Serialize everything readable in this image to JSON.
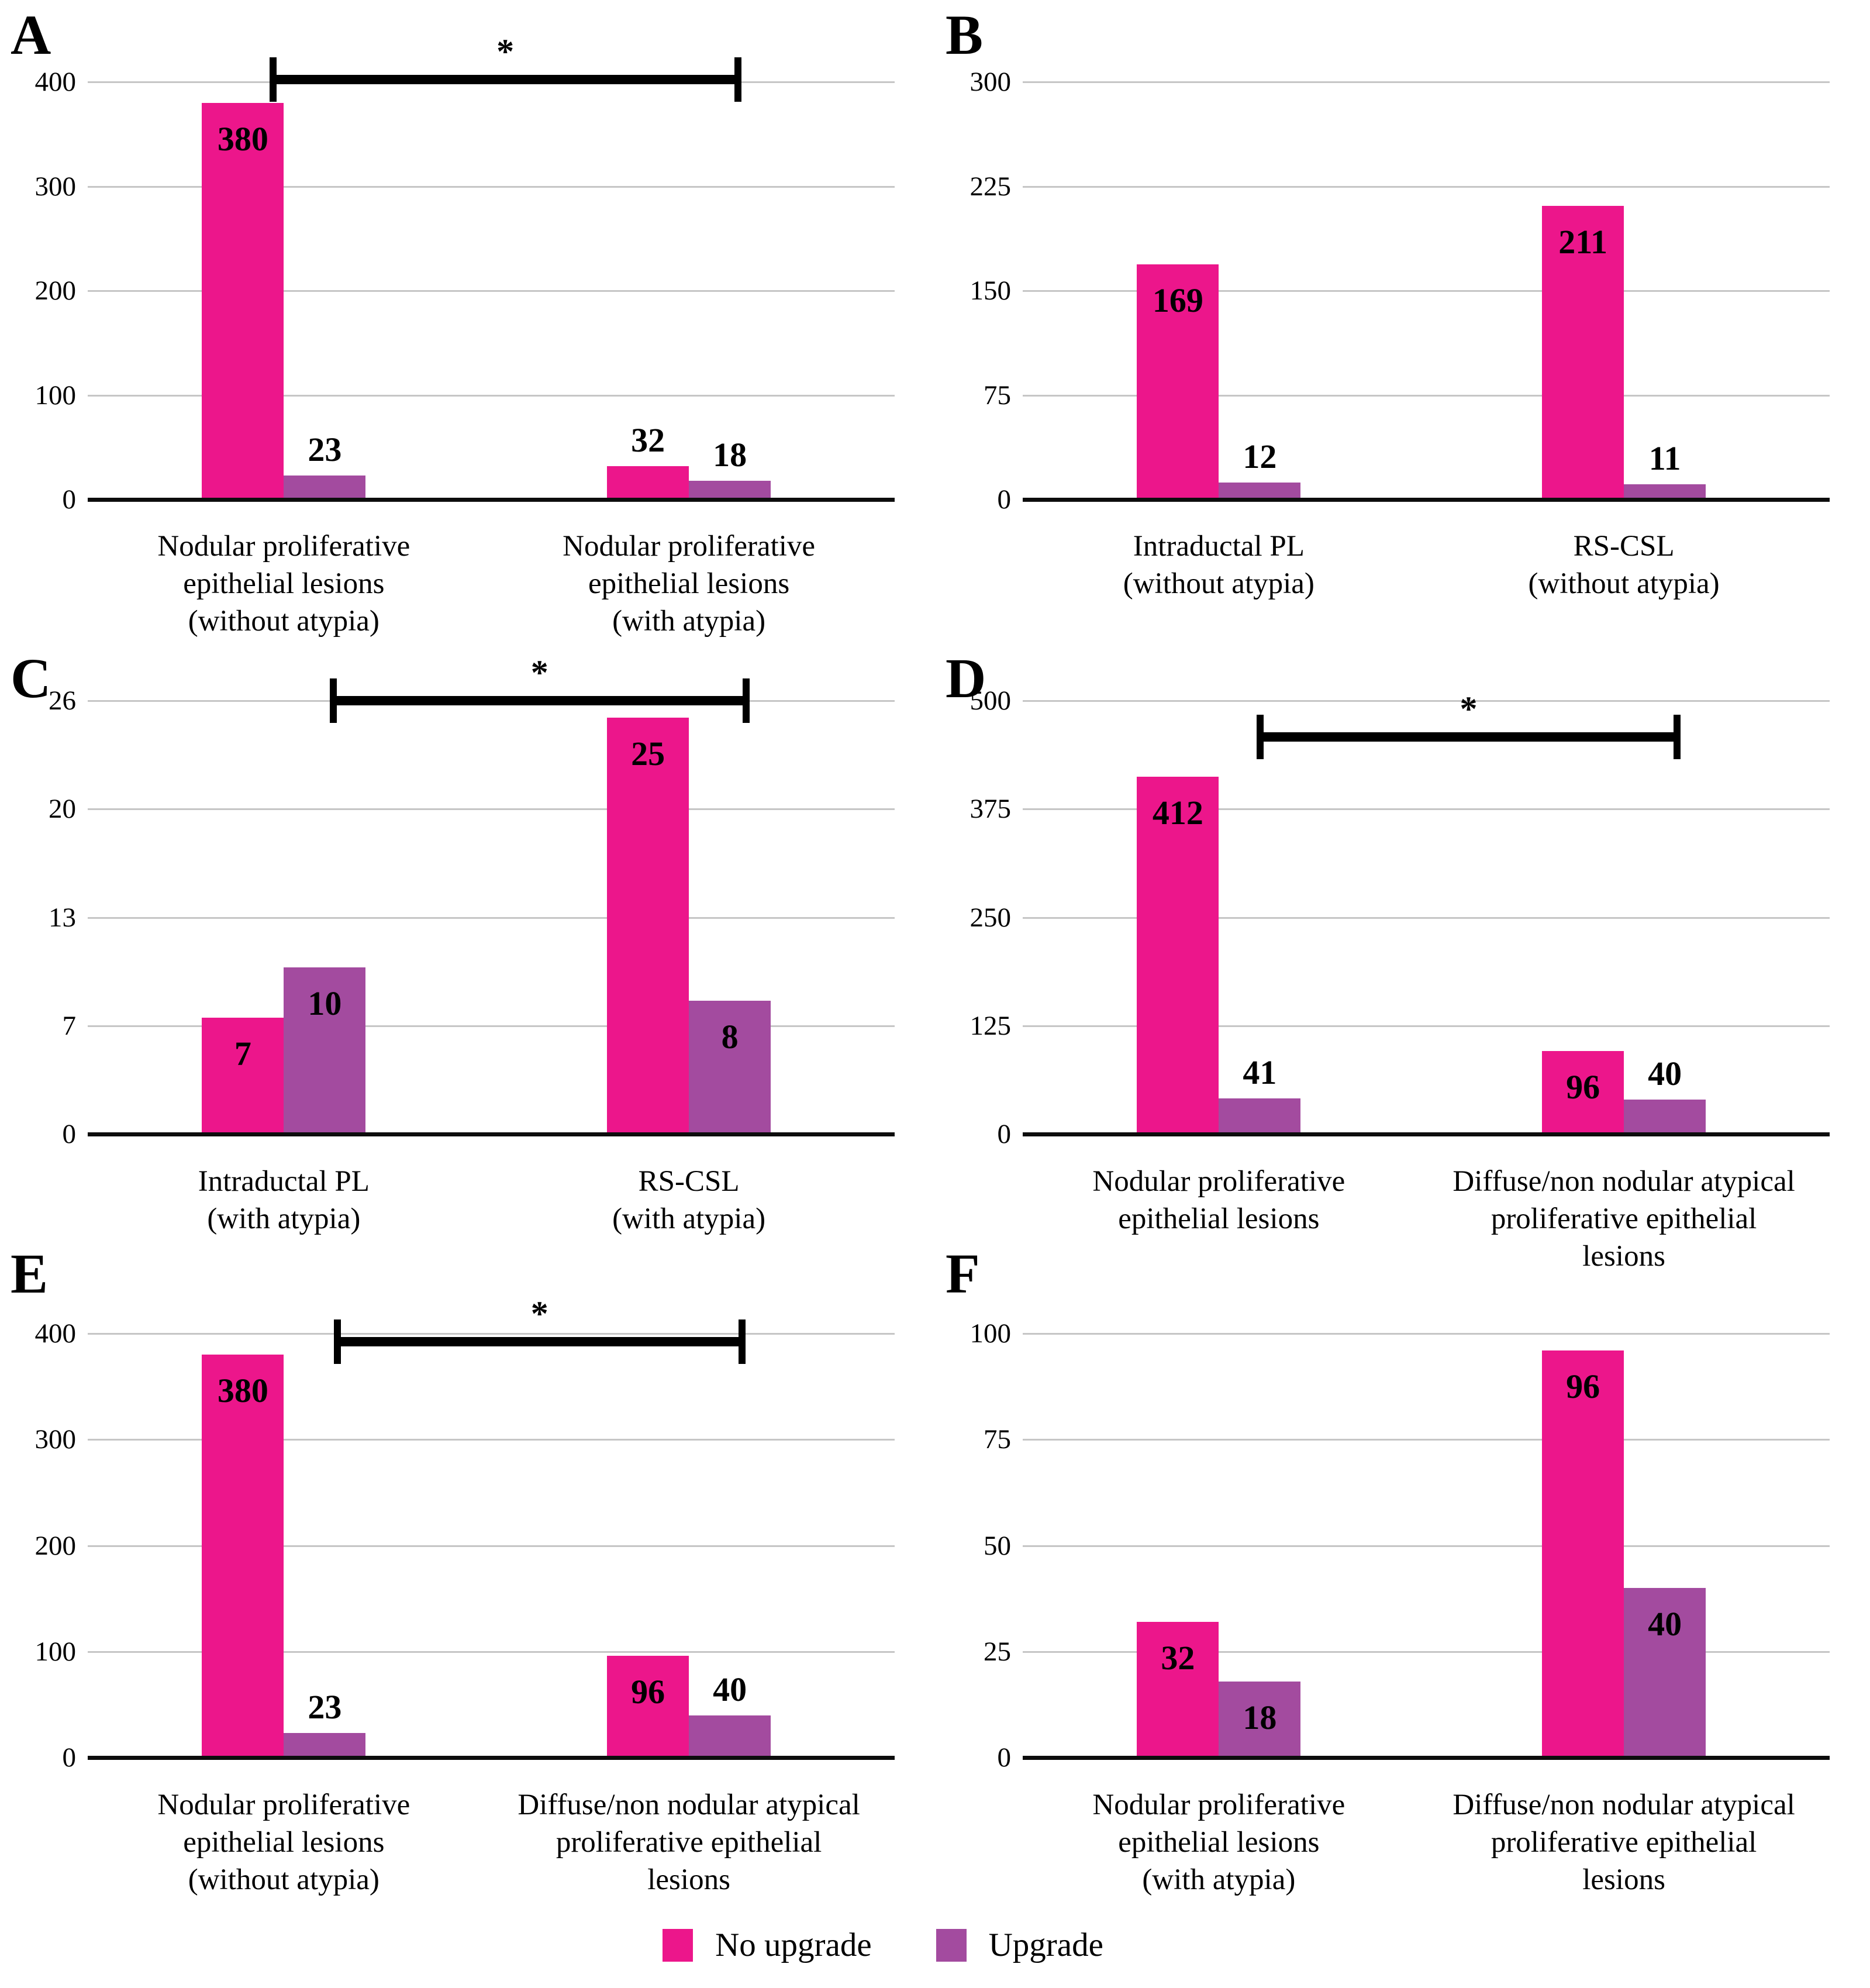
{
  "colors": {
    "no_upgrade": "#EC168B",
    "upgrade": "#A34B9F",
    "gridline": "#C6C6C6",
    "axis": "#0D0D0D",
    "bracket": "#000000",
    "text": "#000000"
  },
  "legend": [
    {
      "label": "No upgrade",
      "series": "no_upgrade"
    },
    {
      "label": "Upgrade",
      "series": "upgrade"
    }
  ],
  "chart_data": [
    {
      "type": "bar",
      "panel": "A",
      "ylim": [
        0,
        400
      ],
      "yticks": [
        "400",
        "300",
        "200",
        "100",
        "0"
      ],
      "grid": true,
      "legend_position": "bottom-shared",
      "categories": [
        "Nodular proliferative epithelial lesions (without atypia)",
        "Nodular proliferative epithelial lesions (with atypia)"
      ],
      "category_display": [
        "Nodular proliferative\nepithelial lesions\n(without atypia)",
        "Nodular proliferative\nepithelial lesions\n(with atypia)"
      ],
      "series": [
        {
          "name": "No upgrade",
          "values": [
            380,
            32
          ]
        },
        {
          "name": "Upgrade",
          "values": [
            23,
            18
          ]
        }
      ],
      "significance": {
        "star": "*",
        "between": [
          0,
          1
        ]
      }
    },
    {
      "type": "bar",
      "panel": "B",
      "ylim": [
        0,
        300
      ],
      "yticks": [
        "300",
        "225",
        "150",
        "75",
        "0"
      ],
      "grid": true,
      "legend_position": "bottom-shared",
      "categories": [
        "Intraductal PL (without atypia)",
        "RS-CSL (without atypia)"
      ],
      "category_display": [
        "Intraductal PL\n(without atypia)",
        "RS-CSL\n(without atypia)"
      ],
      "series": [
        {
          "name": "No upgrade",
          "values": [
            169,
            211
          ]
        },
        {
          "name": "Upgrade",
          "values": [
            12,
            11
          ]
        }
      ]
    },
    {
      "type": "bar",
      "panel": "C",
      "ylim": [
        0,
        26
      ],
      "yticks": [
        "26",
        "20",
        "13",
        "7",
        "0"
      ],
      "grid": true,
      "legend_position": "bottom-shared",
      "categories": [
        "Intraductal PL (with atypia)",
        "RS-CSL (with atypia)"
      ],
      "category_display": [
        "Intraductal PL\n(with atypia)",
        "RS-CSL\n(with atypia)"
      ],
      "series": [
        {
          "name": "No upgrade",
          "values": [
            7,
            25
          ]
        },
        {
          "name": "Upgrade",
          "values": [
            10,
            8
          ]
        }
      ],
      "significance": {
        "star": "*",
        "between": [
          0,
          1
        ]
      }
    },
    {
      "type": "bar",
      "panel": "D",
      "ylim": [
        0,
        500
      ],
      "yticks": [
        "500",
        "375",
        "250",
        "125",
        "0"
      ],
      "grid": true,
      "legend_position": "bottom-shared",
      "categories": [
        "Nodular proliferative epithelial lesions",
        "Diffuse/non nodular atypical proliferative epithelial lesions"
      ],
      "category_display": [
        "Nodular proliferative\nepithelial lesions",
        "Diffuse/non nodular atypical\nproliferative epithelial\nlesions"
      ],
      "series": [
        {
          "name": "No upgrade",
          "values": [
            412,
            96
          ]
        },
        {
          "name": "Upgrade",
          "values": [
            41,
            40
          ]
        }
      ],
      "significance": {
        "star": "*",
        "between": [
          0,
          1
        ]
      }
    },
    {
      "type": "bar",
      "panel": "E",
      "ylim": [
        0,
        400
      ],
      "yticks": [
        "400",
        "300",
        "200",
        "100",
        "0"
      ],
      "grid": true,
      "legend_position": "bottom-shared",
      "categories": [
        "Nodular proliferative epithelial lesions (without atypia)",
        "Diffuse/non nodular atypical proliferative epithelial lesions"
      ],
      "category_display": [
        "Nodular proliferative\nepithelial lesions\n(without atypia)",
        "Diffuse/non nodular atypical\nproliferative epithelial\nlesions"
      ],
      "series": [
        {
          "name": "No upgrade",
          "values": [
            380,
            96
          ]
        },
        {
          "name": "Upgrade",
          "values": [
            23,
            40
          ]
        }
      ],
      "significance": {
        "star": "*",
        "between": [
          0,
          1
        ]
      }
    },
    {
      "type": "bar",
      "panel": "F",
      "ylim": [
        0,
        100
      ],
      "yticks": [
        "100",
        "75",
        "50",
        "25",
        "0"
      ],
      "grid": true,
      "legend_position": "bottom-shared",
      "categories": [
        "Nodular proliferative epithelial lesions (with atypia)",
        "Diffuse/non nodular atypical proliferative epithelial lesions"
      ],
      "category_display": [
        "Nodular proliferative\nepithelial lesions\n(with atypia)",
        "Diffuse/non nodular atypical\nproliferative epithelial\nlesions"
      ],
      "series": [
        {
          "name": "No upgrade",
          "values": [
            32,
            96
          ]
        },
        {
          "name": "Upgrade",
          "values": [
            18,
            40
          ]
        }
      ]
    }
  ]
}
